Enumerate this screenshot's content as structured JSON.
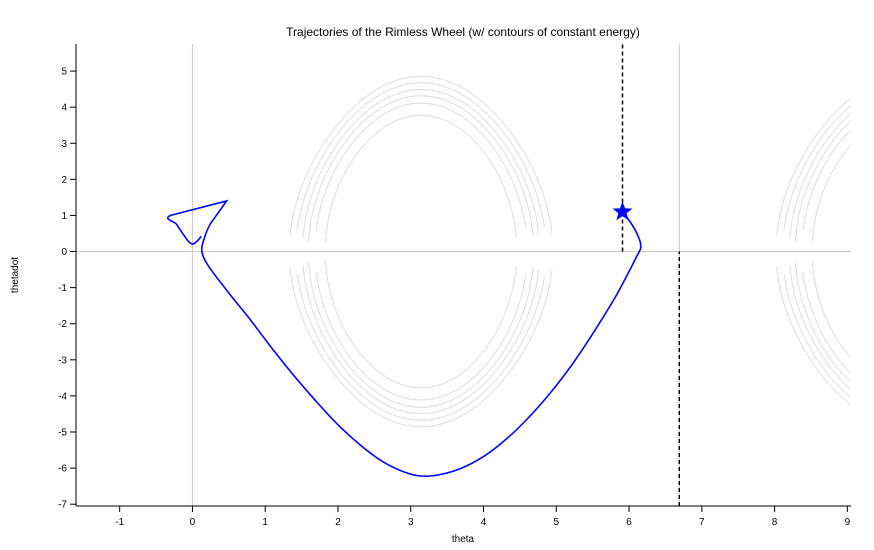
{
  "chart_data": {
    "type": "line",
    "title": "Trajectories of the Rimless Wheel (w/ contours of constant energy)",
    "xlabel": "theta",
    "ylabel": "thetadot",
    "xlim": [
      -1.6,
      9.05
    ],
    "ylim": [
      -7.05,
      5.75
    ],
    "xticks": [
      -1,
      0,
      1,
      2,
      3,
      4,
      5,
      6,
      7,
      8,
      9
    ],
    "yticks": [
      -7,
      -6,
      -5,
      -4,
      -3,
      -2,
      -1,
      0,
      1,
      2,
      3,
      4,
      5
    ],
    "grid": false,
    "reference_lines": {
      "horizontal_y": 0,
      "vertical_x": [
        0,
        6.69
      ]
    },
    "energy_contours": {
      "color": "#dcdcdc",
      "levels": [
        -2.5,
        -1.1,
        -0.2,
        0.6,
        1.5,
        2.4
      ],
      "periods": [
        [
          0,
          6.69
        ],
        [
          6.69,
          13.38
        ]
      ],
      "note_formula": "thetadot^2 = 2*(E + 10*cos(theta))"
    },
    "dashed_lines": [
      {
        "x": 5.91,
        "y_from": 0,
        "y_to": 5.75
      },
      {
        "x": 6.69,
        "y_from": -7.05,
        "y_to": 0
      }
    ],
    "trajectory": {
      "color": "#0000ff",
      "points": [
        [
          0.12,
          0.42
        ],
        [
          0.07,
          0.3
        ],
        [
          0.02,
          0.22
        ],
        [
          -0.02,
          0.22
        ],
        [
          -0.07,
          0.32
        ],
        [
          -0.14,
          0.52
        ],
        [
          -0.22,
          0.76
        ],
        [
          -0.3,
          1.0
        ],
        [
          0.47,
          1.4
        ],
        [
          0.25,
          0.78
        ],
        [
          0.16,
          0.35
        ],
        [
          0.13,
          0.0
        ],
        [
          0.22,
          -0.4
        ],
        [
          0.5,
          -1.15
        ],
        [
          0.8,
          -1.9
        ],
        [
          1.1,
          -2.7
        ],
        [
          1.4,
          -3.45
        ],
        [
          1.7,
          -4.15
        ],
        [
          2.0,
          -4.8
        ],
        [
          2.3,
          -5.35
        ],
        [
          2.6,
          -5.8
        ],
        [
          2.9,
          -6.1
        ],
        [
          3.14,
          -6.22
        ],
        [
          3.4,
          -6.18
        ],
        [
          3.7,
          -6.0
        ],
        [
          4.0,
          -5.68
        ],
        [
          4.3,
          -5.22
        ],
        [
          4.6,
          -4.64
        ],
        [
          4.9,
          -3.96
        ],
        [
          5.2,
          -3.18
        ],
        [
          5.5,
          -2.28
        ],
        [
          5.8,
          -1.3
        ],
        [
          6.0,
          -0.55
        ],
        [
          6.1,
          -0.15
        ],
        [
          6.16,
          0.1
        ],
        [
          6.14,
          0.35
        ],
        [
          6.06,
          0.68
        ],
        [
          5.98,
          0.92
        ],
        [
          5.91,
          1.1
        ]
      ]
    },
    "marker": {
      "x": 5.91,
      "y": 1.1,
      "shape": "star",
      "color": "#0000ff"
    }
  }
}
